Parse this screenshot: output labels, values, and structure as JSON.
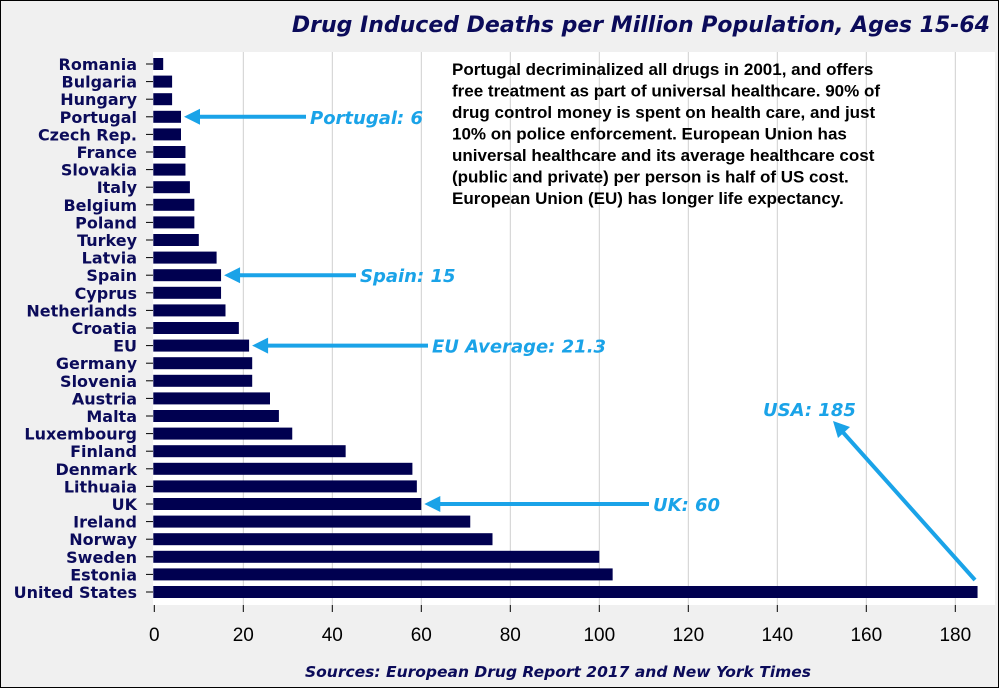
{
  "chart_data": {
    "type": "bar",
    "orientation": "horizontal",
    "title": "Drug Induced Deaths per Million Population, Ages 15-64",
    "xlabel": "",
    "ylabel": "",
    "source": "Sources: European Drug Report 2017 and New York Times",
    "xlim": [
      0,
      188
    ],
    "xticks": [
      0,
      20,
      40,
      60,
      80,
      100,
      120,
      140,
      160,
      180
    ],
    "grid": "vertical",
    "categories": [
      "Romania",
      "Bulgaria",
      "Hungary",
      "Portugal",
      "Czech Rep.",
      "France",
      "Slovakia",
      "Italy",
      "Belgium",
      "Poland",
      "Turkey",
      "Latvia",
      "Spain",
      "Cyprus",
      "Netherlands",
      "Croatia",
      "EU",
      "Germany",
      "Slovenia",
      "Austria",
      "Malta",
      "Luxembourg",
      "Finland",
      "Denmark",
      "Lithuaia",
      "UK",
      "Ireland",
      "Norway",
      "Sweden",
      "Estonia",
      "United States"
    ],
    "values": [
      2,
      4,
      4,
      6,
      6,
      7,
      7,
      8,
      9,
      9,
      10,
      14,
      15,
      15,
      16,
      19,
      21.3,
      22,
      22,
      26,
      28,
      31,
      43,
      58,
      59,
      60,
      71,
      76,
      100,
      103,
      185
    ],
    "bar_color": "#000050",
    "annotation_color": "#1aa3e8",
    "note": [
      "Portugal decriminalized all drugs in 2001, and offers",
      "free treatment as part of universal healthcare. 90% of",
      "drug control money is spent on health care, and just",
      "10% on police enforcement. European Union has",
      "universal healthcare and its average healthcare cost",
      "(public and private) per person is half of US cost.",
      "European Union (EU) has longer life expectancy."
    ],
    "callouts": [
      {
        "category": "Portugal",
        "label": "Portugal: 6"
      },
      {
        "category": "Spain",
        "label": "Spain: 15"
      },
      {
        "category": "EU",
        "label": "EU Average: 21.3"
      },
      {
        "category": "UK",
        "label": "UK: 60"
      },
      {
        "category": "United States",
        "label": "USA: 185"
      }
    ]
  }
}
